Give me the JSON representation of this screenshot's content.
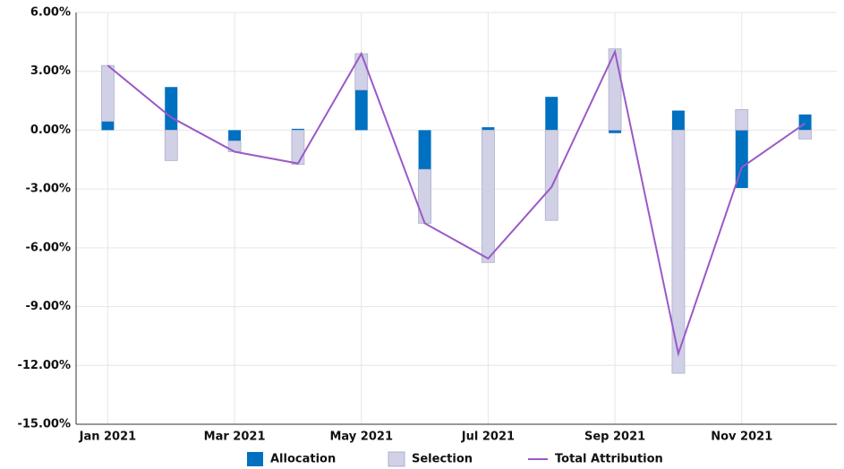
{
  "chart_data": {
    "type": "bar",
    "stacked": true,
    "grid": true,
    "categories": [
      "Jan 2021",
      null,
      "Mar 2021",
      null,
      "May 2021",
      null,
      "Jul 2021",
      null,
      "Sep 2021",
      null,
      "Nov 2021",
      null
    ],
    "series": [
      {
        "name": "Allocation",
        "type": "bar",
        "color": "#0070c0",
        "values": [
          0.45,
          2.2,
          -0.55,
          0.07,
          2.05,
          -2.0,
          0.15,
          1.7,
          -0.15,
          1.0,
          -2.95,
          0.8
        ]
      },
      {
        "name": "Selection",
        "type": "bar",
        "color": "#d0d0e6",
        "values": [
          2.85,
          -1.55,
          -0.55,
          -1.75,
          1.85,
          -2.75,
          -6.75,
          -4.6,
          4.15,
          -12.4,
          1.05,
          -0.45
        ]
      },
      {
        "name": "Total Attribution",
        "type": "line",
        "color": "#9b59c6",
        "values": [
          3.3,
          0.65,
          -1.1,
          -1.7,
          3.9,
          -4.75,
          -6.55,
          -2.9,
          4.0,
          -11.4,
          -1.9,
          0.35
        ]
      }
    ],
    "ylim": [
      -15,
      6
    ],
    "yticks": [
      {
        "value": -15,
        "label": "-15.00%"
      },
      {
        "value": -12,
        "label": "-12.00%"
      },
      {
        "value": -9,
        "label": "-9.00%"
      },
      {
        "value": -6,
        "label": "-6.00%"
      },
      {
        "value": -3,
        "label": "-3.00%"
      },
      {
        "value": 0,
        "label": "0.00%"
      },
      {
        "value": 3,
        "label": "3.00%"
      },
      {
        "value": 6,
        "label": "6.00%"
      }
    ]
  }
}
